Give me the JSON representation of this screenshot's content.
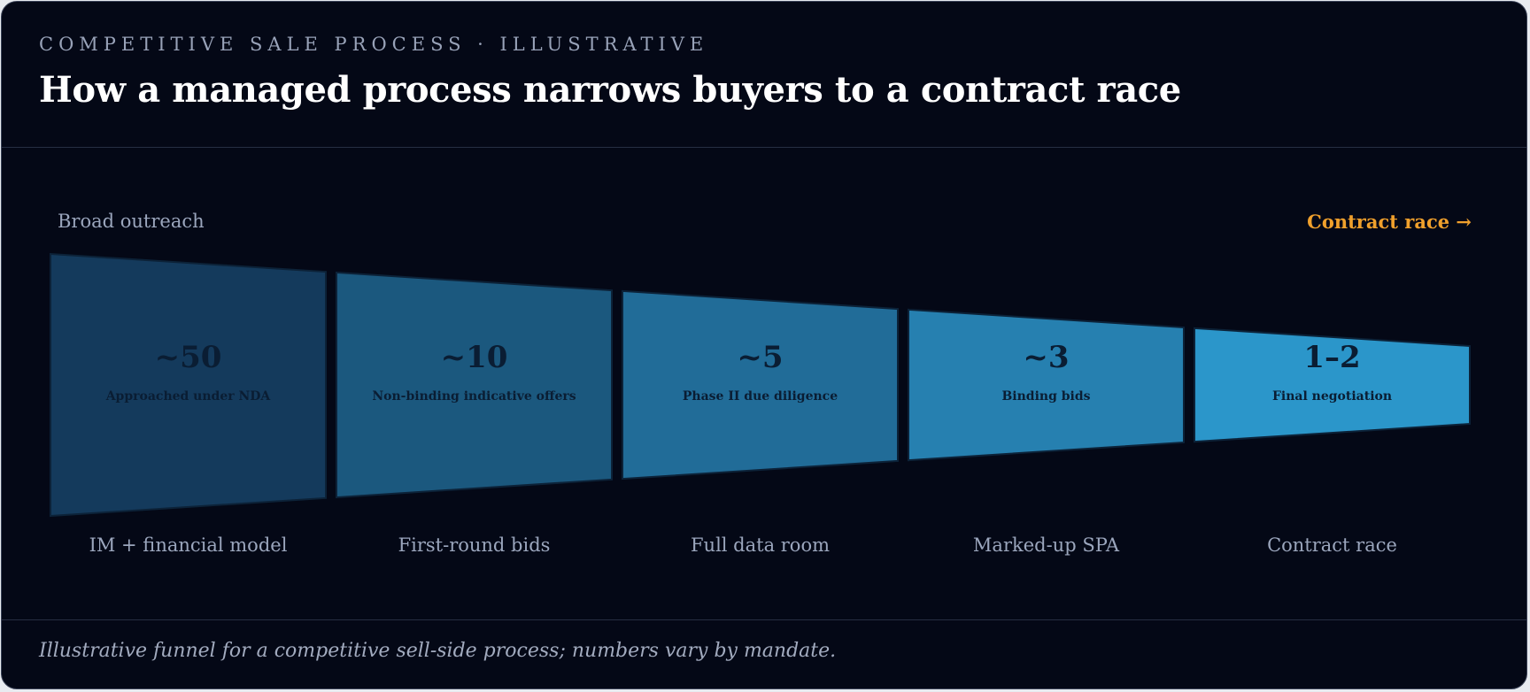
{
  "header": {
    "eyebrow": "COMPETITIVE SALE PROCESS · ILLUSTRATIVE",
    "title": "How a managed process narrows buyers to a contract race"
  },
  "funnel": {
    "start_label": "Broad outreach",
    "end_label": "Contract race →",
    "end_label_color": "#f0a02c",
    "stages": [
      {
        "count": "~50",
        "name": "Approached under NDA",
        "sub": "IM + financial model",
        "color": "#143a5c"
      },
      {
        "count": "~10",
        "name": "Non-binding indicative offers",
        "sub": "First-round bids",
        "color": "#1b587e"
      },
      {
        "count": "~5",
        "name": "Phase II due diligence",
        "sub": "Full data room",
        "color": "#216c98"
      },
      {
        "count": "~3",
        "name": "Binding bids",
        "sub": "Marked-up SPA",
        "color": "#2680b0"
      },
      {
        "count": "1–2",
        "name": "Final negotiation",
        "sub": "Contract race",
        "color": "#2b96ca"
      }
    ]
  },
  "footer": {
    "note": "Illustrative funnel for a competitive sell-side process; numbers vary by mandate."
  }
}
